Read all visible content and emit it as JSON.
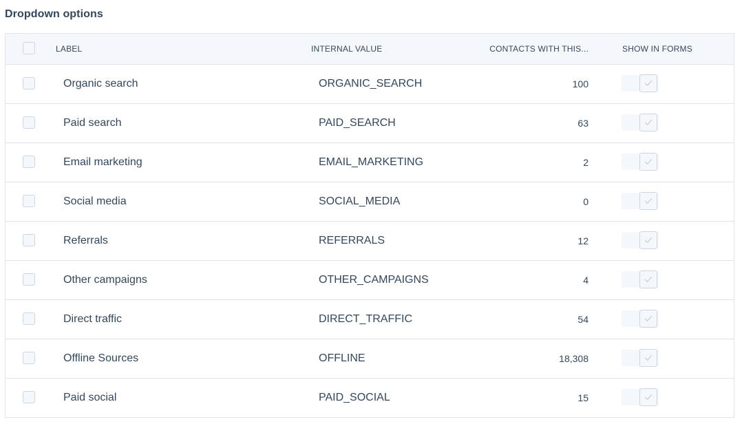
{
  "section_title": "Dropdown options",
  "columns": {
    "label": "LABEL",
    "internal_value": "INTERNAL VALUE",
    "contacts": "CONTACTS WITH THIS...",
    "show_in_forms": "SHOW IN FORMS"
  },
  "rows": [
    {
      "label": "Organic search",
      "internal_value": "ORGANIC_SEARCH",
      "contacts": "100"
    },
    {
      "label": "Paid search",
      "internal_value": "PAID_SEARCH",
      "contacts": "63"
    },
    {
      "label": "Email marketing",
      "internal_value": "EMAIL_MARKETING",
      "contacts": "2"
    },
    {
      "label": "Social media",
      "internal_value": "SOCIAL_MEDIA",
      "contacts": "0"
    },
    {
      "label": "Referrals",
      "internal_value": "REFERRALS",
      "contacts": "12"
    },
    {
      "label": "Other campaigns",
      "internal_value": "OTHER_CAMPAIGNS",
      "contacts": "4"
    },
    {
      "label": "Direct traffic",
      "internal_value": "DIRECT_TRAFFIC",
      "contacts": "54"
    },
    {
      "label": "Offline Sources",
      "internal_value": "OFFLINE",
      "contacts": "18,308"
    },
    {
      "label": "Paid social",
      "internal_value": "PAID_SOCIAL",
      "contacts": "15"
    }
  ],
  "icons": {
    "toggle_knob": "check-icon",
    "header_checkbox": "checkbox-icon"
  },
  "colors": {
    "text": "#33475b",
    "border": "#dfe3eb",
    "header_bg": "#f5f8fa",
    "checkbox_border": "#cbd6e2"
  }
}
